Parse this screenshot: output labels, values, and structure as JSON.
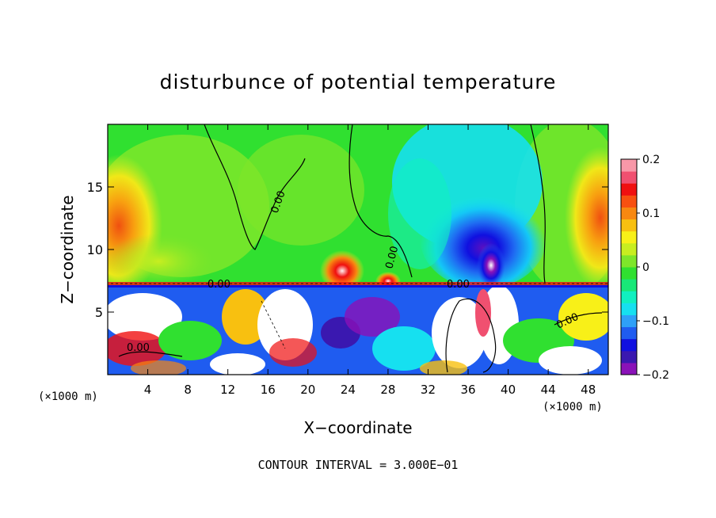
{
  "chart_data": {
    "type": "heatmap",
    "title": "disturbunce of potential temperature",
    "xlabel": "X−coordinate",
    "ylabel": "Z−coordinate",
    "x_unit": "(×1000 m)",
    "z_unit": "(×1000 m)",
    "xlim": [
      0,
      50
    ],
    "ylim": [
      0,
      20
    ],
    "x_ticks": [
      4,
      8,
      12,
      16,
      20,
      24,
      28,
      32,
      36,
      40,
      44,
      48
    ],
    "y_ticks": [
      5,
      10,
      15
    ],
    "colorbar": {
      "range": [
        -0.2,
        0.2
      ],
      "tick_values": [
        0.2,
        0.1,
        0,
        -0.1,
        -0.2
      ],
      "tick_labels": [
        "0.2",
        "0.1",
        "0",
        "−0.1",
        "−0.2"
      ],
      "colors": [
        "#8a12b8",
        "#3a18b0",
        "#1010e0",
        "#1f5cf0",
        "#2ea0f8",
        "#16e0f0",
        "#10f0c0",
        "#18e878",
        "#30e030",
        "#7ee62a",
        "#c8ee20",
        "#f8f018",
        "#f8c010",
        "#f88810",
        "#f85010",
        "#f01010",
        "#f05070",
        "#f898a8"
      ]
    },
    "contour_label": "0.00",
    "footer": "CONTOUR INTERVAL = 3.000E−01"
  }
}
